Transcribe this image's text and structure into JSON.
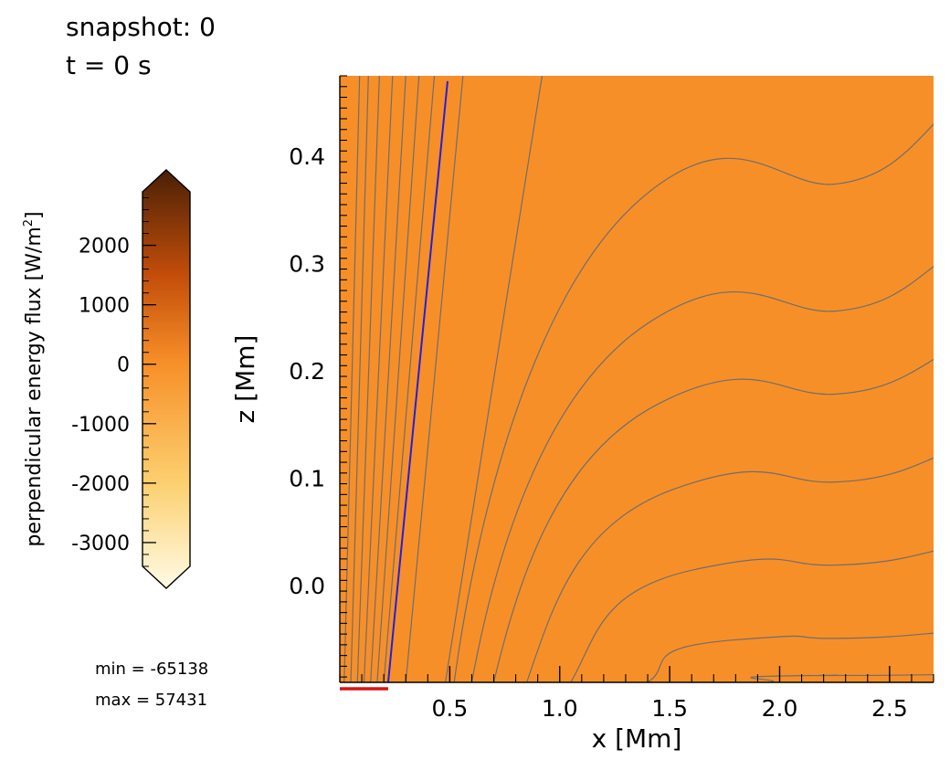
{
  "header": {
    "snapshot_label": "snapshot:",
    "snapshot_value": "0",
    "time_label": "t =",
    "time_value": "0",
    "time_unit": "s"
  },
  "stats": {
    "min_label": "min =",
    "min_value": "-65138",
    "max_label": "max =",
    "max_value": "57431"
  },
  "colorbar": {
    "label": "perpendicular energy flux [W/m",
    "label_superscript": "2",
    "label_close": "]",
    "range": [
      -3400,
      2900
    ],
    "extend": "both",
    "ticks": [
      2000,
      1000,
      0,
      -1000,
      -2000,
      -3000
    ],
    "tick_labels": [
      "2000",
      "1000",
      "0",
      "-1000",
      "-2000",
      "-3000"
    ],
    "minor_step": 200,
    "colors": {
      "low": "#fffbe6",
      "mid_low": "#fcd070",
      "mid": "#f78f28",
      "mid_high": "#c24d0a",
      "high": "#4a2006"
    }
  },
  "chart_data": {
    "type": "heatmap",
    "title": "",
    "xlabel": "x [Mm]",
    "ylabel": "z [Mm]",
    "xlim": [
      0.0,
      2.7
    ],
    "ylim": [
      -0.09,
      0.475
    ],
    "xticks": [
      0.5,
      1.0,
      1.5,
      2.0,
      2.5
    ],
    "xtick_labels": [
      "0.5",
      "1.0",
      "1.5",
      "2.0",
      "2.5"
    ],
    "yticks": [
      0.0,
      0.1,
      0.2,
      0.3,
      0.4
    ],
    "ytick_labels": [
      "0.0",
      "0.1",
      "0.2",
      "0.3",
      "0.4"
    ],
    "field_value": 0,
    "field_color": "#f78f28",
    "grid": false,
    "field_lines": {
      "color": "#6e6e6e",
      "steep": [
        {
          "x_bottom": 0.02,
          "x_top": 0.09
        },
        {
          "x_bottom": 0.05,
          "x_top": 0.13
        },
        {
          "x_bottom": 0.08,
          "x_top": 0.18
        },
        {
          "x_bottom": 0.11,
          "x_top": 0.24
        },
        {
          "x_bottom": 0.14,
          "x_top": 0.3
        },
        {
          "x_bottom": 0.17,
          "x_top": 0.36
        },
        {
          "x_bottom": 0.2,
          "x_top": 0.43
        },
        {
          "x_bottom": 0.3,
          "x_top": 0.56
        },
        {
          "x_bottom": 0.48,
          "x_top": 0.92
        }
      ],
      "curved": [
        {
          "x_start": 0.52,
          "z_right": 0.42
        },
        {
          "x_start": 0.6,
          "z_right": 0.29
        },
        {
          "x_start": 0.7,
          "z_right": 0.205
        },
        {
          "x_start": 0.85,
          "z_right": 0.115
        },
        {
          "x_start": 1.05,
          "z_right": 0.03
        },
        {
          "x_start": 1.4,
          "z_right": -0.045
        },
        {
          "x_start": 1.95,
          "z_right": -0.083
        }
      ]
    },
    "highlight_line": {
      "color": "#2020dd",
      "x_bottom": 0.22,
      "x_top": 0.49
    },
    "marker": {
      "color": "#e01010",
      "x_range": [
        0.0,
        0.22
      ],
      "position": "below x-axis"
    }
  }
}
